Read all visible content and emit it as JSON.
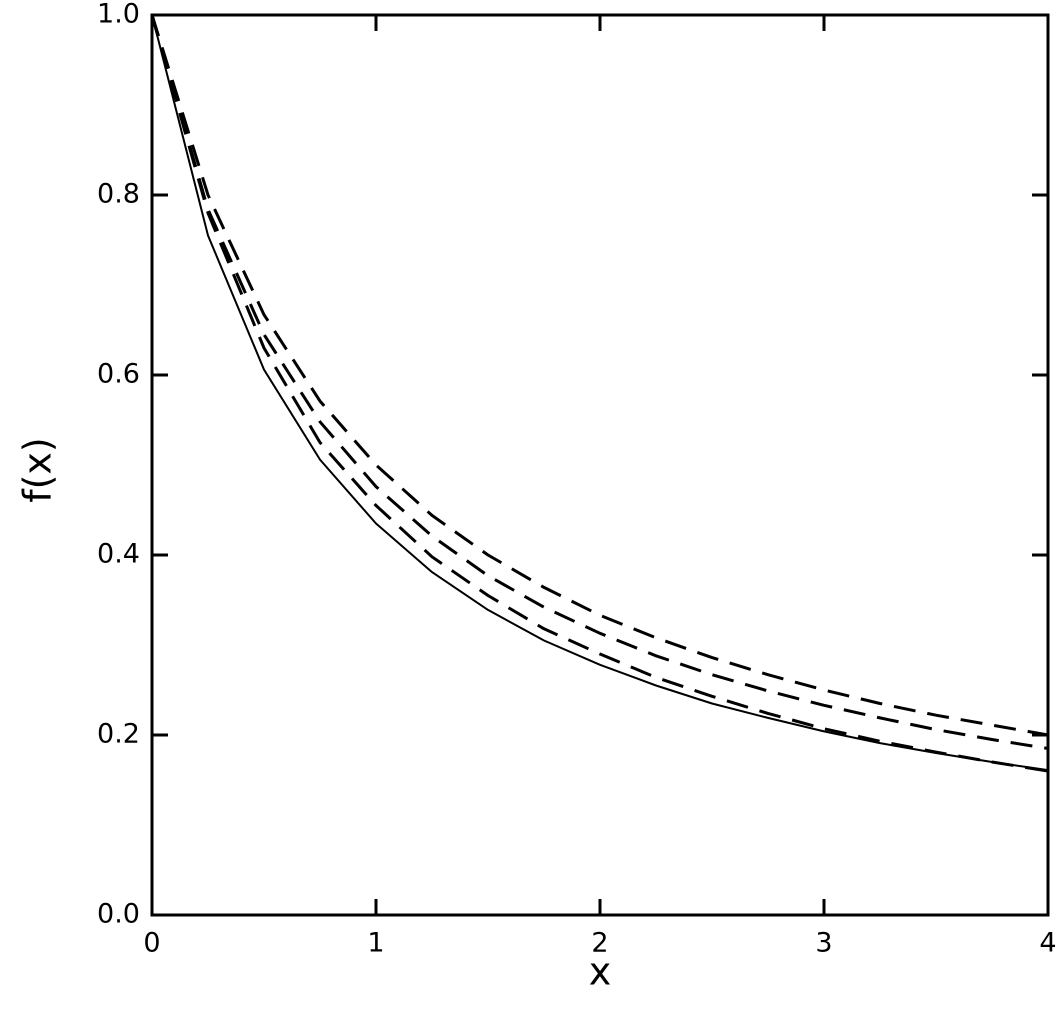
{
  "chart_data": {
    "type": "line",
    "x_label": "x",
    "y_label": "f(x)",
    "x": [
      0,
      0.25,
      0.5,
      0.75,
      1,
      1.25,
      1.5,
      1.75,
      2,
      2.25,
      2.5,
      2.75,
      3,
      3.25,
      3.5,
      3.75,
      4
    ],
    "series": [
      {
        "color": "#000000",
        "dashed": false,
        "values": [
          1,
          0.755,
          0.606,
          0.506,
          0.435,
          0.381,
          0.339,
          0.305,
          0.278,
          0.255,
          0.235,
          0.219,
          0.204,
          0.191,
          0.18,
          0.17,
          0.161
        ]
      },
      {
        "color": "#000000",
        "dashed": true,
        "values": [
          1,
          0.8,
          0.667,
          0.571,
          0.5,
          0.444,
          0.4,
          0.364,
          0.333,
          0.308,
          0.286,
          0.267,
          0.25,
          0.235,
          0.222,
          0.211,
          0.2
        ]
      },
      {
        "color": "#000000",
        "dashed": true,
        "values": [
          1,
          0.784,
          0.645,
          0.548,
          0.476,
          0.421,
          0.377,
          0.342,
          0.313,
          0.288,
          0.267,
          0.249,
          0.233,
          0.219,
          0.206,
          0.195,
          0.185
        ]
      },
      {
        "color": "#000000",
        "dashed": true,
        "values": [
          1,
          0.78,
          0.63,
          0.525,
          0.455,
          0.398,
          0.355,
          0.318,
          0.29,
          0.264,
          0.243,
          0.224,
          0.207,
          0.193,
          0.181,
          0.17,
          0.16
        ]
      }
    ],
    "xlim": [
      0,
      4
    ],
    "xticks": [
      0,
      1,
      2,
      3,
      4
    ],
    "ylim": [
      0,
      1
    ],
    "yticks": [
      {
        "value": 0,
        "label": "0.0"
      },
      0.2,
      0.4,
      0.6,
      0.8,
      {
        "value": 1,
        "label": "1.0"
      }
    ],
    "grid": false
  }
}
